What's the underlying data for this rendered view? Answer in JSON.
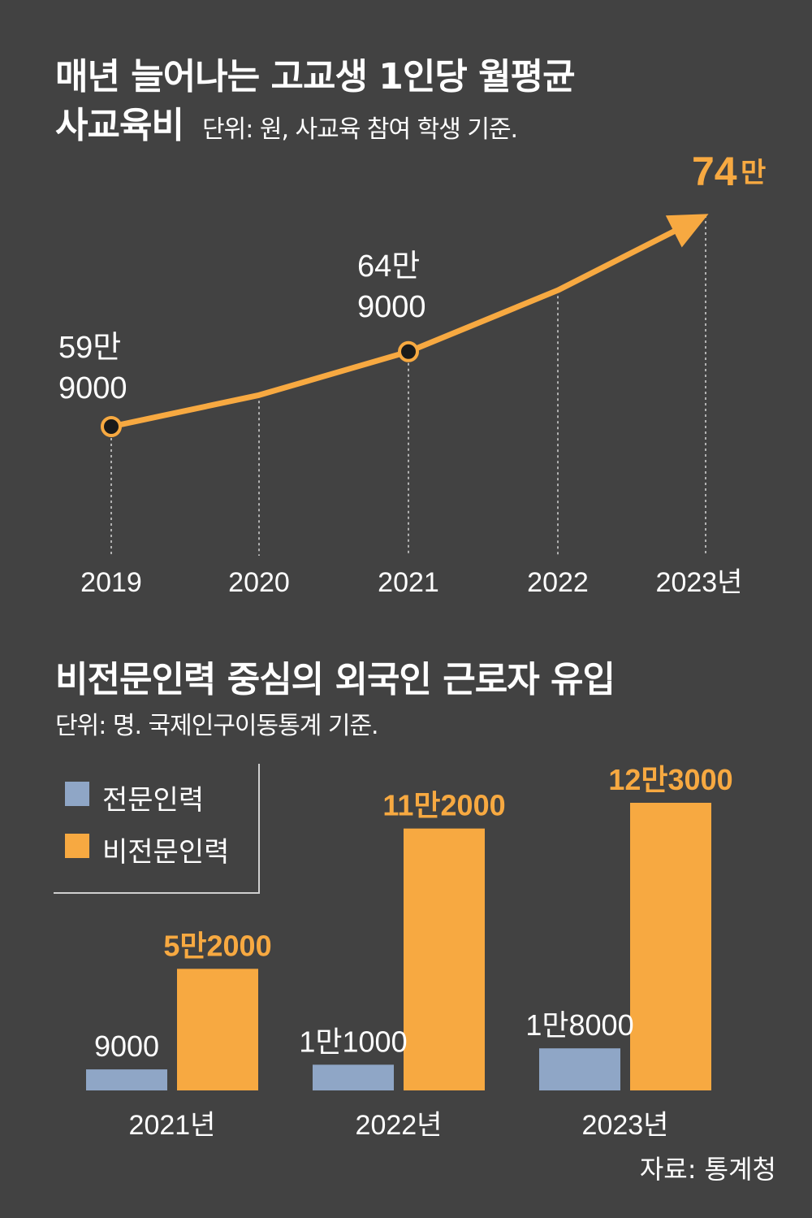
{
  "line_chart": {
    "title_line1": "매년 늘어나는 고교생 1인당 월평균",
    "title_line2": "사교육비",
    "unit": "단위: 원, 사교육 참여 학생 기준."
  },
  "bar_chart": {
    "title": "비전문인력 중심의 외국인 근로자 유입",
    "unit": "단위: 명. 국제인구이동통계 기준.",
    "legend_professional": "전문인력",
    "legend_nonprofessional": "비전문인력"
  },
  "source": "자료: 통계청",
  "colors": {
    "background": "#424242",
    "accent_orange": "#F7A941",
    "professional_blue": "#8FA6C6",
    "text": "#FFFFFF"
  },
  "chart_data": [
    {
      "type": "line",
      "title": "매년 늘어나는 고교생 1인당 월평균 사교육비",
      "subtitle": "단위: 원, 사교육 참여 학생 기준.",
      "categories": [
        "2019",
        "2020",
        "2021",
        "2022",
        "2023년"
      ],
      "values": [
        599000,
        620000,
        649000,
        690000,
        740000
      ],
      "point_labels": [
        {
          "index": 0,
          "lines": [
            "59만",
            "9000"
          ]
        },
        {
          "index": 2,
          "lines": [
            "64만",
            "9000"
          ]
        },
        {
          "index": 4,
          "lines": [
            "74",
            "만"
          ]
        }
      ],
      "ylim": [
        540000,
        760000
      ]
    },
    {
      "type": "bar",
      "title": "비전문인력 중심의 외국인 근로자 유입",
      "subtitle": "단위: 명. 국제인구이동통계 기준.",
      "categories": [
        "2021년",
        "2022년",
        "2023년"
      ],
      "series": [
        {
          "name": "전문인력",
          "values": [
            9000,
            11000,
            18000
          ],
          "labels": [
            "9000",
            "1만1000",
            "1만8000"
          ]
        },
        {
          "name": "비전문인력",
          "values": [
            52000,
            112000,
            123000
          ],
          "labels": [
            "5만2000",
            "11만2000",
            "12만3000"
          ]
        }
      ],
      "ylim": [
        0,
        123000
      ],
      "legend": "top-left"
    }
  ]
}
